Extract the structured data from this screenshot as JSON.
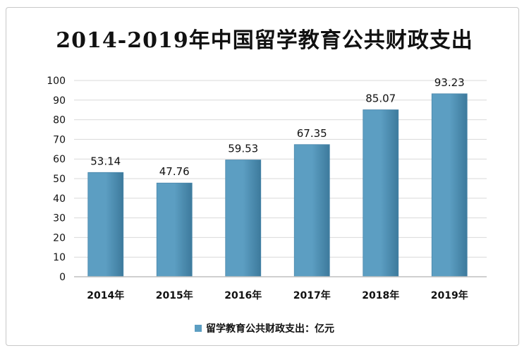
{
  "chart_data": {
    "type": "bar",
    "title": "2014-2019年中国留学教育公共财政支出",
    "categories": [
      "2014年",
      "2015年",
      "2016年",
      "2017年",
      "2018年",
      "2019年"
    ],
    "series": [
      {
        "name": "留学教育公共财政支出：亿元",
        "values": [
          53.14,
          47.76,
          59.53,
          67.35,
          85.07,
          93.23
        ],
        "data_labels": [
          "53.14",
          "47.76",
          "59.53",
          "67.35",
          "85.07",
          "93.23"
        ]
      }
    ],
    "ylim": [
      0,
      100
    ],
    "yticks": [
      0,
      10,
      20,
      30,
      40,
      50,
      60,
      70,
      80,
      90,
      100
    ],
    "grid": true,
    "legend_position": "bottom",
    "bar_color": "#5c9ec2",
    "bar_color_dark": "#3d7a9c"
  }
}
